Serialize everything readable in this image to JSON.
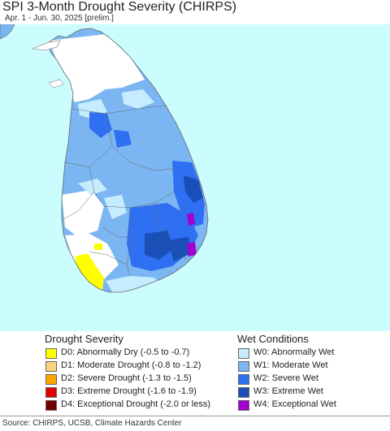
{
  "header": {
    "title": "SPI 3-Month Drought Severity (CHIRPS)",
    "subtitle": "Apr. 1 - Jun. 30, 2025 [prelim.]"
  },
  "colors": {
    "sea": "#ccfdfe",
    "land_neutral": "#ffffff",
    "w0": "#c6ecff",
    "w1": "#7bb6f2",
    "w2": "#2f6ff2",
    "w3": "#1a4fb7",
    "w4": "#a100cf",
    "d0": "#ffff00",
    "d1": "#fcd27f",
    "d2": "#ffa500",
    "d3": "#e00000",
    "d4": "#730000",
    "boundary": "#666666"
  },
  "legend": {
    "drought_heading": "Drought Severity",
    "wet_heading": "Wet Conditions",
    "drought_items": [
      {
        "label": "D0: Abnormally Dry (-0.5 to -0.7)",
        "color": "#ffff00"
      },
      {
        "label": "D1: Moderate Drought (-0.8 to -1.2)",
        "color": "#fcd27f"
      },
      {
        "label": "D2: Severe Drought (-1.3 to -1.5)",
        "color": "#ffa500"
      },
      {
        "label": "D3: Extreme Drought (-1.6 to -1.9)",
        "color": "#e00000"
      },
      {
        "label": "D4: Exceptional Drought (-2.0 or less)",
        "color": "#730000"
      }
    ],
    "wet_items": [
      {
        "label": "W0: Abnormally Wet",
        "color": "#c6ecff"
      },
      {
        "label": "W1: Moderate Wet",
        "color": "#7bb6f2"
      },
      {
        "label": "W2: Severe Wet",
        "color": "#2f6ff2"
      },
      {
        "label": "W3: Extreme Wet",
        "color": "#1a4fb7"
      },
      {
        "label": "W4: Exceptional Wet",
        "color": "#a100cf"
      }
    ]
  },
  "footer": {
    "source": "Source: CHIRPS, UCSB, Climate Hazards Center"
  }
}
